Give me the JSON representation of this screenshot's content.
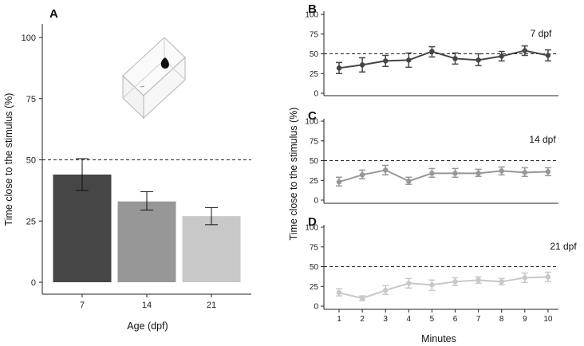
{
  "chart_data": [
    {
      "panel": "A",
      "type": "bar",
      "xlabel": "Age (dpf)",
      "ylabel": "Time close to the stimulus (%)",
      "categories": [
        "7",
        "14",
        "21"
      ],
      "values": [
        44,
        33,
        27
      ],
      "error_low": [
        37.5,
        29.5,
        23.5
      ],
      "error_high": [
        50.5,
        37,
        30.5
      ],
      "colors": [
        "#464646",
        "#979797",
        "#c8c8c8"
      ],
      "ylim": [
        0,
        105
      ],
      "yticks": [
        0,
        25,
        50,
        75,
        100
      ],
      "reference_line": 50,
      "grid": false
    },
    {
      "panel": "B",
      "type": "line",
      "series": [
        {
          "name": "7 dpf",
          "color": "#464646",
          "x": [
            1,
            2,
            3,
            4,
            5,
            6,
            7,
            8,
            9,
            10
          ],
          "values": [
            32,
            36,
            41,
            42,
            53,
            44,
            42,
            47,
            54,
            48
          ],
          "error_low": [
            25,
            27,
            34,
            33,
            46,
            37,
            35,
            41,
            48,
            41
          ],
          "error_high": [
            39,
            45,
            48,
            51,
            59,
            51,
            50,
            53,
            60,
            55
          ]
        }
      ],
      "ylim": [
        0,
        100
      ],
      "yticks": [
        0,
        25,
        50,
        75,
        100
      ],
      "reference_line": 50
    },
    {
      "panel": "C",
      "type": "line",
      "series": [
        {
          "name": "14 dpf",
          "color": "#979797",
          "x": [
            1,
            2,
            3,
            4,
            5,
            6,
            7,
            8,
            9,
            10
          ],
          "values": [
            23,
            32,
            38,
            24,
            34,
            34,
            34,
            37,
            35,
            36
          ],
          "error_low": [
            18,
            27,
            32,
            20,
            29,
            29,
            30,
            32,
            30,
            31
          ],
          "error_high": [
            29,
            38,
            44,
            29,
            40,
            40,
            39,
            42,
            41,
            41
          ]
        }
      ],
      "ylim": [
        0,
        100
      ],
      "yticks": [
        0,
        25,
        50,
        75,
        100
      ],
      "reference_line": 50
    },
    {
      "panel": "D",
      "type": "line",
      "series": [
        {
          "name": "21 dpf",
          "color": "#c8c8c8",
          "x": [
            1,
            2,
            3,
            4,
            5,
            6,
            7,
            8,
            9,
            10
          ],
          "values": [
            17,
            10,
            20,
            29,
            27,
            31,
            33,
            31,
            36,
            37
          ],
          "error_low": [
            13,
            7,
            15,
            23,
            20,
            26,
            29,
            27,
            30,
            31
          ],
          "error_high": [
            22,
            13,
            26,
            35,
            33,
            36,
            37,
            35,
            42,
            43
          ]
        }
      ],
      "ylim": [
        0,
        100
      ],
      "yticks": [
        0,
        25,
        50,
        75,
        100
      ],
      "reference_line": 50,
      "xlabel": "Minutes"
    }
  ]
}
